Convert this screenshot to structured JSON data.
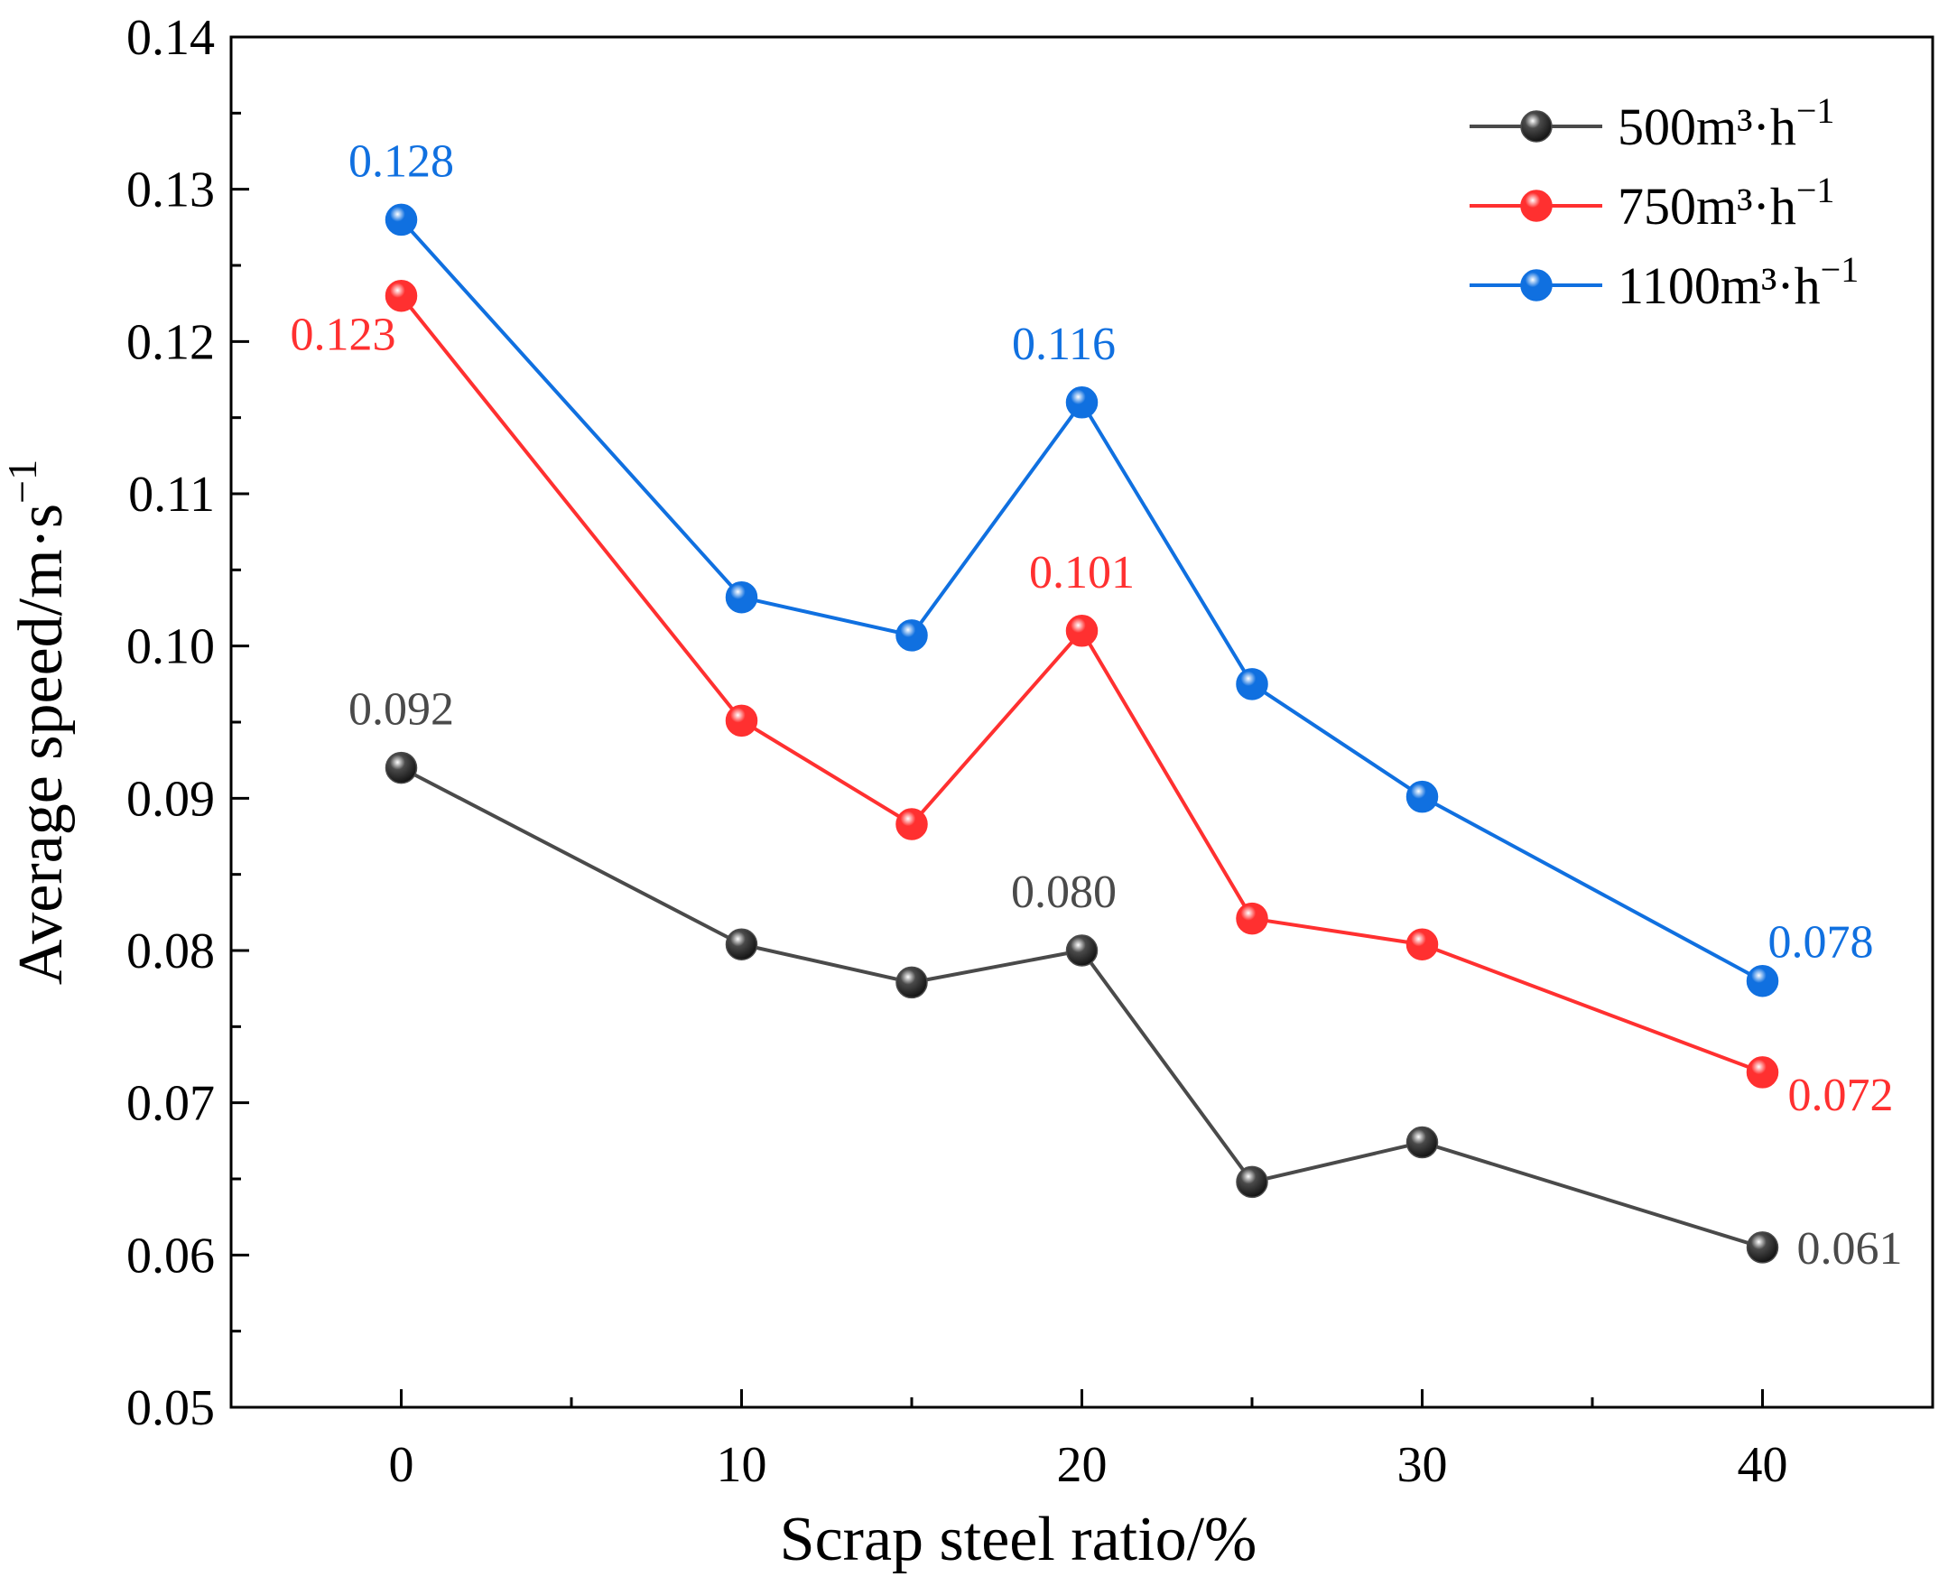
{
  "chart_data": {
    "type": "line",
    "title": "",
    "xlabel": "Scrap steel ratio/%",
    "ylabel": "Average speed/m·s",
    "ylabel_sup": "−1",
    "xlim": [
      -5,
      45
    ],
    "ylim": [
      0.05,
      0.14
    ],
    "xticks": [
      0,
      10,
      20,
      30,
      40
    ],
    "xticks_minor": [
      5,
      15,
      25,
      35
    ],
    "yticks": [
      "0.05",
      "0.06",
      "0.07",
      "0.08",
      "0.09",
      "0.10",
      "0.11",
      "0.12",
      "0.13",
      "0.14"
    ],
    "grid": false,
    "legend_position": "top-right",
    "x": [
      0,
      10,
      15,
      20,
      25,
      30,
      40
    ],
    "series": [
      {
        "name": "500m³·h",
        "sup": "−1",
        "color": "#4a4a4a",
        "values": [
          0.092,
          0.0804,
          0.0779,
          0.08,
          0.0648,
          0.0674,
          0.0605
        ]
      },
      {
        "name": "750m³·h",
        "sup": "−1",
        "color": "#ff3030",
        "values": [
          0.123,
          0.0951,
          0.0883,
          0.101,
          0.0821,
          0.0804,
          0.072
        ]
      },
      {
        "name": "1100m³·h",
        "sup": "−1",
        "color": "#1070e0",
        "values": [
          0.128,
          0.1032,
          0.1007,
          0.116,
          0.0975,
          0.0901,
          0.078
        ]
      }
    ],
    "annotations": [
      {
        "series": 0,
        "x": 0,
        "text": "0.092",
        "pos": "above"
      },
      {
        "series": 0,
        "x": 20,
        "text": "0.080",
        "pos": "above-left"
      },
      {
        "series": 0,
        "x": 40,
        "text": "0.061",
        "pos": "right"
      },
      {
        "series": 1,
        "x": 0,
        "text": "0.123",
        "pos": "below-left"
      },
      {
        "series": 1,
        "x": 20,
        "text": "0.101",
        "pos": "above"
      },
      {
        "series": 1,
        "x": 40,
        "text": "0.072",
        "pos": "below-right"
      },
      {
        "series": 2,
        "x": 0,
        "text": "0.128",
        "pos": "above"
      },
      {
        "series": 2,
        "x": 20,
        "text": "0.116",
        "pos": "above-left"
      },
      {
        "series": 2,
        "x": 40,
        "text": "0.078",
        "pos": "above-right"
      }
    ]
  }
}
